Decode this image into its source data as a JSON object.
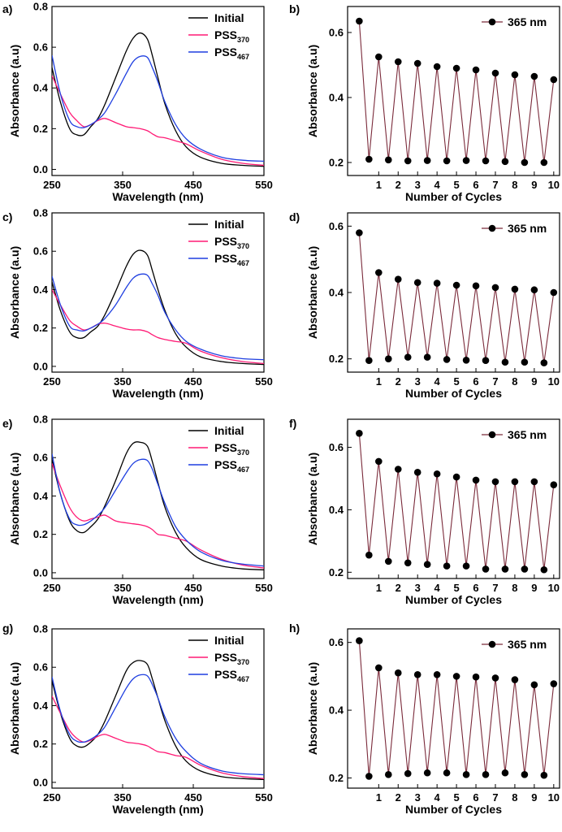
{
  "chart_data": [
    {
      "panel": "a)",
      "type": "line",
      "xlabel": "Wavelength (nm)",
      "ylabel": "Absorbance (a.u)",
      "xlim": [
        250,
        550
      ],
      "ylim": [
        -0.03,
        0.8
      ],
      "xticks": [
        250,
        350,
        450,
        550
      ],
      "yticks": [
        0.0,
        0.2,
        0.4,
        0.6,
        0.8
      ],
      "yticklabels": [
        "0.0",
        "0.2",
        "0.4",
        "0.6",
        "0.8"
      ],
      "legend_position": "top-right",
      "series": [
        {
          "name": "Initial",
          "label": "Initial",
          "sub": "",
          "color": "#000000",
          "x": [
            250,
            262,
            275,
            285,
            295,
            305,
            315,
            325,
            340,
            355,
            365,
            375,
            385,
            392,
            400,
            410,
            425,
            440,
            460,
            490,
            520,
            550
          ],
          "y": [
            0.5,
            0.33,
            0.2,
            0.17,
            0.17,
            0.21,
            0.25,
            0.32,
            0.45,
            0.58,
            0.645,
            0.67,
            0.64,
            0.56,
            0.45,
            0.32,
            0.19,
            0.11,
            0.06,
            0.03,
            0.02,
            0.015
          ]
        },
        {
          "name": "PSS370",
          "label": "PSS",
          "sub": "370",
          "color": "#ff1a75",
          "x": [
            250,
            262,
            275,
            285,
            295,
            305,
            315,
            325,
            340,
            355,
            365,
            375,
            385,
            392,
            400,
            410,
            425,
            440,
            460,
            490,
            520,
            550
          ],
          "y": [
            0.46,
            0.37,
            0.28,
            0.24,
            0.21,
            0.22,
            0.24,
            0.25,
            0.23,
            0.21,
            0.205,
            0.2,
            0.19,
            0.175,
            0.16,
            0.155,
            0.14,
            0.125,
            0.09,
            0.05,
            0.03,
            0.02
          ]
        },
        {
          "name": "PSS467",
          "label": "PSS",
          "sub": "467",
          "color": "#1f3fe0",
          "x": [
            250,
            262,
            275,
            285,
            295,
            305,
            315,
            325,
            340,
            355,
            365,
            375,
            385,
            392,
            400,
            410,
            425,
            440,
            460,
            490,
            520,
            550
          ],
          "y": [
            0.56,
            0.37,
            0.24,
            0.21,
            0.205,
            0.22,
            0.245,
            0.28,
            0.37,
            0.47,
            0.53,
            0.555,
            0.55,
            0.5,
            0.43,
            0.33,
            0.22,
            0.15,
            0.1,
            0.06,
            0.045,
            0.04
          ]
        }
      ]
    },
    {
      "panel": "b)",
      "type": "line",
      "xlabel": "Number of Cycles",
      "ylabel": "Absorbance (a.u)",
      "xlim": [
        -0.6,
        10.3
      ],
      "ylim": [
        0.16,
        0.68
      ],
      "xticks": [
        1,
        2,
        3,
        4,
        5,
        6,
        7,
        8,
        9,
        10
      ],
      "yticks": [
        0.2,
        0.4,
        0.6
      ],
      "yticklabels": [
        "0.2",
        "0.4",
        "0.6"
      ],
      "legend_position": "top-right",
      "series": [
        {
          "name": "365 nm",
          "label": "365 nm",
          "color": "#7a2a3a",
          "x": [
            0,
            0.5,
            1,
            1.5,
            2,
            2.5,
            3,
            3.5,
            4,
            4.5,
            5,
            5.5,
            6,
            6.5,
            7,
            7.5,
            8,
            8.5,
            9,
            9.5,
            10
          ],
          "y": [
            0.635,
            0.21,
            0.525,
            0.208,
            0.51,
            0.205,
            0.505,
            0.206,
            0.495,
            0.205,
            0.49,
            0.206,
            0.485,
            0.205,
            0.475,
            0.203,
            0.47,
            0.2,
            0.465,
            0.2,
            0.455
          ]
        }
      ]
    },
    {
      "panel": "c)",
      "type": "line",
      "xlabel": "Wavelength (nm)",
      "ylabel": "Absorbance (a.u)",
      "xlim": [
        250,
        550
      ],
      "ylim": [
        -0.03,
        0.8
      ],
      "xticks": [
        250,
        350,
        450,
        550
      ],
      "yticks": [
        0.0,
        0.2,
        0.4,
        0.6,
        0.8
      ],
      "yticklabels": [
        "0.0",
        "0.2",
        "0.4",
        "0.6",
        "0.8"
      ],
      "legend_position": "top-right",
      "series": [
        {
          "name": "Initial",
          "label": "Initial",
          "sub": "",
          "color": "#000000",
          "x": [
            250,
            262,
            275,
            285,
            295,
            305,
            315,
            325,
            340,
            355,
            365,
            375,
            385,
            392,
            400,
            410,
            425,
            440,
            460,
            490,
            520,
            550
          ],
          "y": [
            0.44,
            0.29,
            0.18,
            0.15,
            0.15,
            0.18,
            0.21,
            0.27,
            0.39,
            0.52,
            0.585,
            0.605,
            0.58,
            0.5,
            0.4,
            0.29,
            0.17,
            0.1,
            0.05,
            0.025,
            0.015,
            0.01
          ]
        },
        {
          "name": "PSS370",
          "label": "PSS",
          "sub": "370",
          "color": "#ff1a75",
          "x": [
            250,
            262,
            275,
            285,
            295,
            305,
            315,
            325,
            340,
            355,
            365,
            375,
            385,
            392,
            400,
            410,
            425,
            440,
            460,
            490,
            520,
            550
          ],
          "y": [
            0.4,
            0.32,
            0.24,
            0.21,
            0.19,
            0.2,
            0.22,
            0.225,
            0.21,
            0.195,
            0.19,
            0.19,
            0.18,
            0.165,
            0.15,
            0.14,
            0.13,
            0.12,
            0.08,
            0.045,
            0.025,
            0.015
          ]
        },
        {
          "name": "PSS467",
          "label": "PSS",
          "sub": "467",
          "color": "#1f3fe0",
          "x": [
            250,
            262,
            275,
            285,
            295,
            305,
            315,
            325,
            340,
            355,
            365,
            375,
            385,
            392,
            400,
            410,
            425,
            440,
            460,
            490,
            520,
            550
          ],
          "y": [
            0.47,
            0.32,
            0.21,
            0.19,
            0.185,
            0.2,
            0.22,
            0.25,
            0.32,
            0.41,
            0.46,
            0.48,
            0.475,
            0.43,
            0.37,
            0.28,
            0.19,
            0.13,
            0.09,
            0.055,
            0.04,
            0.035
          ]
        }
      ]
    },
    {
      "panel": "d)",
      "type": "line",
      "xlabel": "Number of Cycles",
      "ylabel": "Absorbance (a.u)",
      "xlim": [
        -0.6,
        10.3
      ],
      "ylim": [
        0.16,
        0.64
      ],
      "xticks": [
        1,
        2,
        3,
        4,
        5,
        6,
        7,
        8,
        9,
        10
      ],
      "yticks": [
        0.2,
        0.4,
        0.6
      ],
      "yticklabels": [
        "0.2",
        "0.4",
        "0.6"
      ],
      "legend_position": "top-right",
      "series": [
        {
          "name": "365 nm",
          "label": "365 nm",
          "color": "#7a2a3a",
          "x": [
            0,
            0.5,
            1,
            1.5,
            2,
            2.5,
            3,
            3.5,
            4,
            4.5,
            5,
            5.5,
            6,
            6.5,
            7,
            7.5,
            8,
            8.5,
            9,
            9.5,
            10
          ],
          "y": [
            0.58,
            0.195,
            0.46,
            0.2,
            0.44,
            0.205,
            0.43,
            0.205,
            0.428,
            0.198,
            0.422,
            0.196,
            0.42,
            0.195,
            0.415,
            0.19,
            0.41,
            0.19,
            0.408,
            0.188,
            0.4
          ]
        }
      ]
    },
    {
      "panel": "e)",
      "type": "line",
      "xlabel": "Wavelength (nm)",
      "ylabel": "Absorbance (a.u)",
      "xlim": [
        250,
        550
      ],
      "ylim": [
        -0.03,
        0.8
      ],
      "xticks": [
        250,
        350,
        450,
        550
      ],
      "yticks": [
        0.0,
        0.2,
        0.4,
        0.6,
        0.8
      ],
      "yticklabels": [
        "0.0",
        "0.2",
        "0.4",
        "0.6",
        "0.8"
      ],
      "legend_position": "top-right",
      "series": [
        {
          "name": "Initial",
          "label": "Initial",
          "sub": "",
          "color": "#000000",
          "x": [
            250,
            262,
            275,
            285,
            295,
            305,
            315,
            325,
            340,
            355,
            365,
            375,
            385,
            392,
            400,
            410,
            425,
            440,
            460,
            490,
            520,
            550
          ],
          "y": [
            0.59,
            0.41,
            0.27,
            0.22,
            0.21,
            0.24,
            0.28,
            0.35,
            0.48,
            0.62,
            0.675,
            0.68,
            0.66,
            0.58,
            0.47,
            0.34,
            0.21,
            0.13,
            0.07,
            0.035,
            0.02,
            0.015
          ]
        },
        {
          "name": "PSS370",
          "label": "PSS",
          "sub": "370",
          "color": "#ff1a75",
          "x": [
            250,
            262,
            275,
            285,
            295,
            305,
            315,
            325,
            340,
            355,
            365,
            375,
            385,
            392,
            400,
            410,
            425,
            440,
            460,
            490,
            520,
            550
          ],
          "y": [
            0.57,
            0.45,
            0.34,
            0.29,
            0.27,
            0.28,
            0.29,
            0.3,
            0.27,
            0.26,
            0.255,
            0.25,
            0.24,
            0.225,
            0.2,
            0.195,
            0.18,
            0.165,
            0.12,
            0.07,
            0.04,
            0.025
          ]
        },
        {
          "name": "PSS467",
          "label": "PSS",
          "sub": "467",
          "color": "#1f3fe0",
          "x": [
            250,
            262,
            275,
            285,
            295,
            305,
            315,
            325,
            340,
            355,
            365,
            375,
            385,
            392,
            400,
            410,
            425,
            440,
            460,
            490,
            520,
            550
          ],
          "y": [
            0.62,
            0.41,
            0.28,
            0.25,
            0.25,
            0.27,
            0.3,
            0.34,
            0.43,
            0.52,
            0.57,
            0.59,
            0.585,
            0.54,
            0.46,
            0.36,
            0.24,
            0.17,
            0.11,
            0.065,
            0.045,
            0.035
          ]
        }
      ]
    },
    {
      "panel": "f)",
      "type": "line",
      "xlabel": "Number of Cycles",
      "ylabel": "Absorbance (a.u)",
      "xlim": [
        -0.6,
        10.3
      ],
      "ylim": [
        0.18,
        0.69
      ],
      "xticks": [
        1,
        2,
        3,
        4,
        5,
        6,
        7,
        8,
        9,
        10
      ],
      "yticks": [
        0.2,
        0.4,
        0.6
      ],
      "yticklabels": [
        "0.2",
        "0.4",
        "0.6"
      ],
      "legend_position": "top-right",
      "series": [
        {
          "name": "365 nm",
          "label": "365 nm",
          "color": "#7a2a3a",
          "x": [
            0,
            0.5,
            1,
            1.5,
            2,
            2.5,
            3,
            3.5,
            4,
            4.5,
            5,
            5.5,
            6,
            6.5,
            7,
            7.5,
            8,
            8.5,
            9,
            9.5,
            10
          ],
          "y": [
            0.645,
            0.255,
            0.555,
            0.235,
            0.53,
            0.23,
            0.52,
            0.225,
            0.515,
            0.22,
            0.505,
            0.22,
            0.495,
            0.21,
            0.49,
            0.21,
            0.49,
            0.21,
            0.49,
            0.208,
            0.48
          ]
        }
      ]
    },
    {
      "panel": "g)",
      "type": "line",
      "xlabel": "Wavelength (nm)",
      "ylabel": "Absorbance (a.u)",
      "xlim": [
        250,
        550
      ],
      "ylim": [
        -0.03,
        0.8
      ],
      "xticks": [
        250,
        350,
        450,
        550
      ],
      "yticks": [
        0.0,
        0.2,
        0.4,
        0.6,
        0.8
      ],
      "yticklabels": [
        "0.0",
        "0.2",
        "0.4",
        "0.6",
        "0.8"
      ],
      "legend_position": "top-right",
      "series": [
        {
          "name": "Initial",
          "label": "Initial",
          "sub": "",
          "color": "#000000",
          "x": [
            250,
            262,
            275,
            285,
            295,
            305,
            315,
            325,
            340,
            355,
            365,
            375,
            385,
            392,
            400,
            410,
            425,
            440,
            460,
            490,
            520,
            550
          ],
          "y": [
            0.53,
            0.36,
            0.23,
            0.19,
            0.185,
            0.21,
            0.25,
            0.32,
            0.45,
            0.58,
            0.625,
            0.635,
            0.615,
            0.54,
            0.44,
            0.32,
            0.19,
            0.11,
            0.06,
            0.03,
            0.02,
            0.015
          ]
        },
        {
          "name": "PSS370",
          "label": "PSS",
          "sub": "370",
          "color": "#ff1a75",
          "x": [
            250,
            262,
            275,
            285,
            295,
            305,
            315,
            325,
            340,
            355,
            365,
            375,
            385,
            392,
            400,
            410,
            425,
            440,
            460,
            490,
            520,
            550
          ],
          "y": [
            0.45,
            0.36,
            0.27,
            0.23,
            0.21,
            0.22,
            0.24,
            0.25,
            0.23,
            0.21,
            0.205,
            0.2,
            0.19,
            0.175,
            0.16,
            0.155,
            0.14,
            0.13,
            0.09,
            0.05,
            0.03,
            0.02
          ]
        },
        {
          "name": "PSS467",
          "label": "PSS",
          "sub": "467",
          "color": "#1f3fe0",
          "x": [
            250,
            262,
            275,
            285,
            295,
            305,
            315,
            325,
            340,
            355,
            365,
            375,
            385,
            392,
            400,
            410,
            425,
            440,
            460,
            490,
            520,
            550
          ],
          "y": [
            0.55,
            0.37,
            0.25,
            0.215,
            0.21,
            0.225,
            0.25,
            0.29,
            0.39,
            0.49,
            0.54,
            0.56,
            0.555,
            0.51,
            0.44,
            0.34,
            0.23,
            0.16,
            0.1,
            0.06,
            0.045,
            0.04
          ]
        }
      ]
    },
    {
      "panel": "h)",
      "type": "line",
      "xlabel": "Number of Cycles",
      "ylabel": "Absorbance (a.u)",
      "xlim": [
        -0.6,
        10.3
      ],
      "ylim": [
        0.17,
        0.64
      ],
      "xticks": [
        1,
        2,
        3,
        4,
        5,
        6,
        7,
        8,
        9,
        10
      ],
      "yticks": [
        0.2,
        0.4,
        0.6
      ],
      "yticklabels": [
        "0.2",
        "0.4",
        "0.6"
      ],
      "legend_position": "top-right",
      "series": [
        {
          "name": "365 nm",
          "label": "365 nm",
          "color": "#7a2a3a",
          "x": [
            0,
            0.5,
            1,
            1.5,
            2,
            2.5,
            3,
            3.5,
            4,
            4.5,
            5,
            5.5,
            6,
            6.5,
            7,
            7.5,
            8,
            8.5,
            9,
            9.5,
            10
          ],
          "y": [
            0.605,
            0.205,
            0.525,
            0.21,
            0.51,
            0.213,
            0.505,
            0.215,
            0.505,
            0.215,
            0.5,
            0.21,
            0.498,
            0.21,
            0.495,
            0.215,
            0.49,
            0.21,
            0.475,
            0.208,
            0.478
          ]
        }
      ]
    }
  ]
}
